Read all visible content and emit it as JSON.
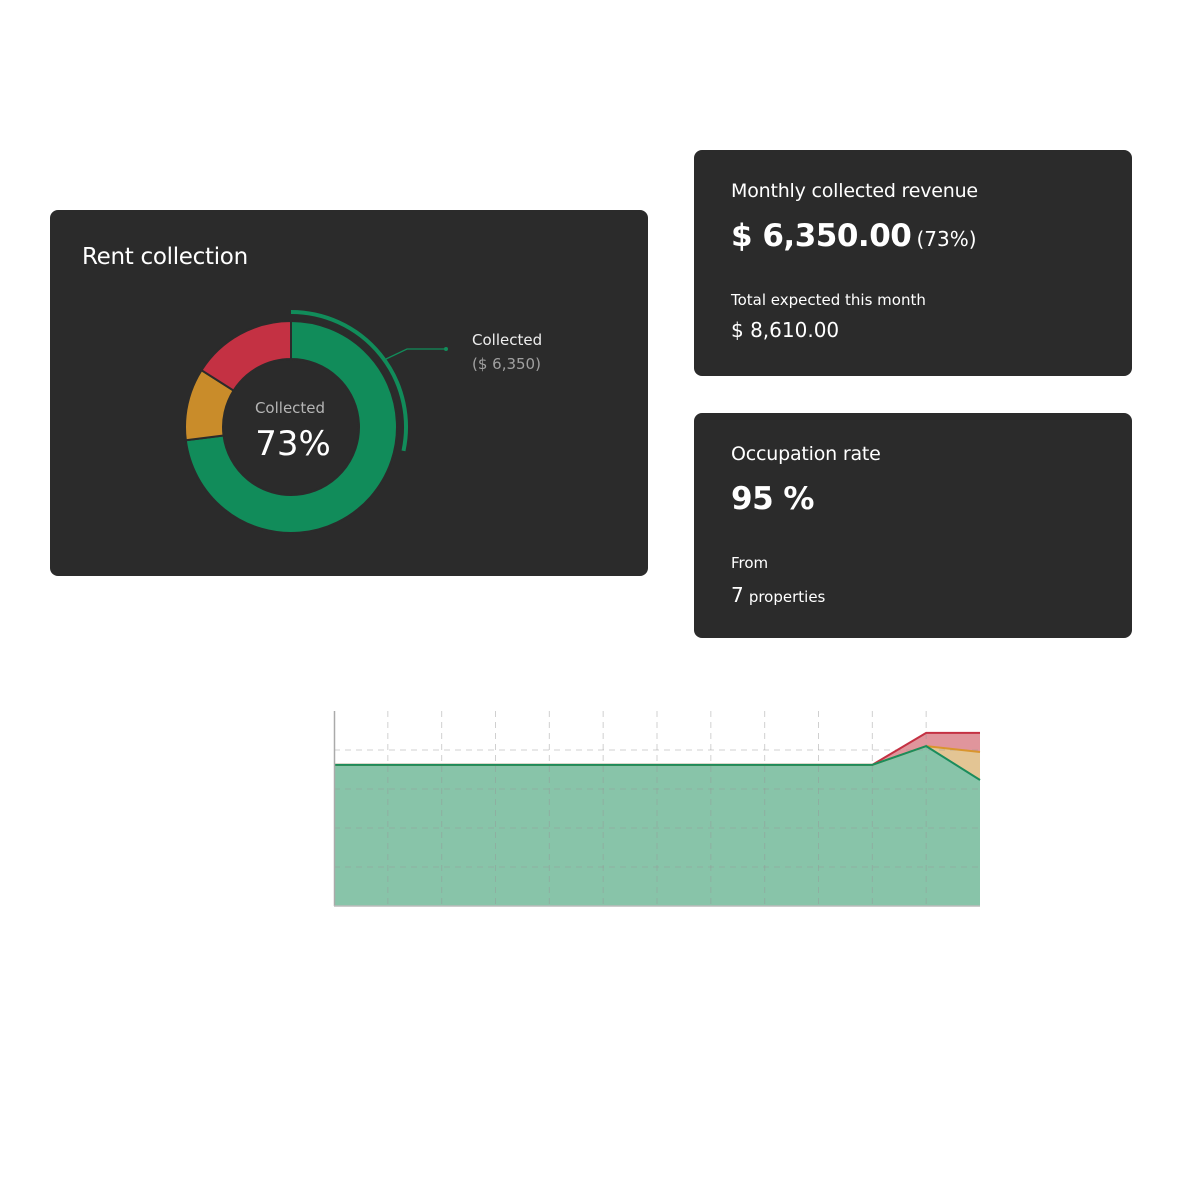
{
  "rent_card": {
    "title": "Rent collection",
    "center_label": "Collected",
    "center_value": "73%",
    "callout_label": "Collected",
    "callout_value": "($ 6,350)"
  },
  "revenue_card": {
    "title": "Monthly collected revenue",
    "amount": "$ 6,350.00",
    "percent": "(73%)",
    "expected_label": "Total expected this month",
    "expected_amount": "$ 8,610.00"
  },
  "occupation_card": {
    "title": "Occupation rate",
    "value": "95 %",
    "from_label": "From",
    "count": "7",
    "count_label": "properties"
  },
  "chart_data": [
    {
      "type": "pie",
      "variant": "donut",
      "slices": [
        {
          "label": "Collected",
          "value": 73,
          "color": "#118c5a"
        },
        {
          "label": "",
          "value": 11,
          "color": "#c98c2a"
        },
        {
          "label": "",
          "value": 16,
          "color": "#c43143"
        }
      ],
      "highlight": "Collected"
    },
    {
      "type": "area",
      "stacked": true,
      "grid": true,
      "ylim": [
        0,
        5
      ],
      "x": [
        0,
        1,
        2,
        3,
        4,
        5,
        6,
        7,
        8,
        9,
        10,
        11,
        12
      ],
      "series": [
        {
          "color": "#1a8c5c",
          "fill": "#88c4a9",
          "values": [
            3.62,
            3.62,
            3.62,
            3.62,
            3.62,
            3.62,
            3.62,
            3.62,
            3.62,
            3.62,
            3.62,
            4.1,
            3.23
          ]
        },
        {
          "color": "#d9952e",
          "fill": "#e3c594",
          "values": [
            3.62,
            3.62,
            3.62,
            3.62,
            3.62,
            3.62,
            3.62,
            3.62,
            3.62,
            3.62,
            3.62,
            4.1,
            3.95
          ]
        },
        {
          "color": "#c43143",
          "fill": "#e0959c",
          "values": [
            3.62,
            3.62,
            3.62,
            3.62,
            3.62,
            3.62,
            3.62,
            3.62,
            3.62,
            3.62,
            3.62,
            4.44,
            4.44
          ]
        }
      ]
    }
  ]
}
